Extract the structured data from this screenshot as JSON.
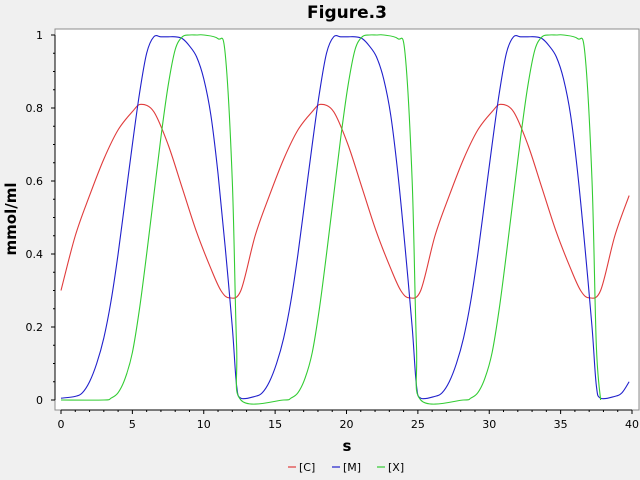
{
  "chart_data": {
    "type": "line",
    "title": "Figure.3",
    "xlabel": "s",
    "ylabel": "mmol/ml",
    "xlim": [
      0,
      40
    ],
    "ylim": [
      0,
      1
    ],
    "xticks": [
      "0",
      "5",
      "10",
      "15",
      "20",
      "25",
      "30",
      "35",
      "40"
    ],
    "yticks": [
      "0",
      "0.2",
      "0.4",
      "0.6",
      "0.8",
      "1"
    ],
    "grid": false,
    "legend_position": "bottom",
    "period": 12.6,
    "series": [
      {
        "name": "[C]",
        "color": "#e03c3c",
        "x": [
          0,
          1,
          2,
          3,
          4,
          5,
          5.6,
          6.5,
          7.5,
          8.5,
          9.5,
          10.5,
          11.2,
          11.8,
          12.6
        ],
        "y": [
          0.3,
          0.45,
          0.56,
          0.66,
          0.74,
          0.79,
          0.81,
          0.79,
          0.7,
          0.58,
          0.46,
          0.36,
          0.3,
          0.28,
          0.3
        ]
      },
      {
        "name": "[M]",
        "color": "#2020cc",
        "x": [
          0,
          1,
          1.5,
          2,
          2.5,
          3,
          3.5,
          4,
          4.5,
          5,
          5.5,
          6,
          6.5,
          7,
          7.5,
          8,
          8.5,
          9,
          9.5,
          10,
          10.5,
          11,
          11.5,
          12,
          12.3,
          12.6
        ],
        "y": [
          0.005,
          0.01,
          0.02,
          0.05,
          0.1,
          0.17,
          0.27,
          0.4,
          0.55,
          0.7,
          0.84,
          0.95,
          0.995,
          0.995,
          0.995,
          0.995,
          0.99,
          0.97,
          0.94,
          0.88,
          0.78,
          0.62,
          0.42,
          0.2,
          0.04,
          0.005
        ]
      },
      {
        "name": "[X]",
        "color": "#33cc33",
        "x": [
          0,
          3,
          3.5,
          4,
          4.5,
          5,
          5.5,
          6,
          6.5,
          7,
          7.5,
          8,
          8.5,
          9,
          9.5,
          10,
          11,
          11.5,
          12,
          12.3,
          12.6
        ],
        "y": [
          0,
          0,
          0.005,
          0.02,
          0.06,
          0.13,
          0.25,
          0.4,
          0.56,
          0.72,
          0.86,
          0.96,
          0.995,
          1.0,
          1.0,
          1.0,
          0.99,
          0.95,
          0.6,
          0.15,
          0
        ]
      }
    ]
  }
}
